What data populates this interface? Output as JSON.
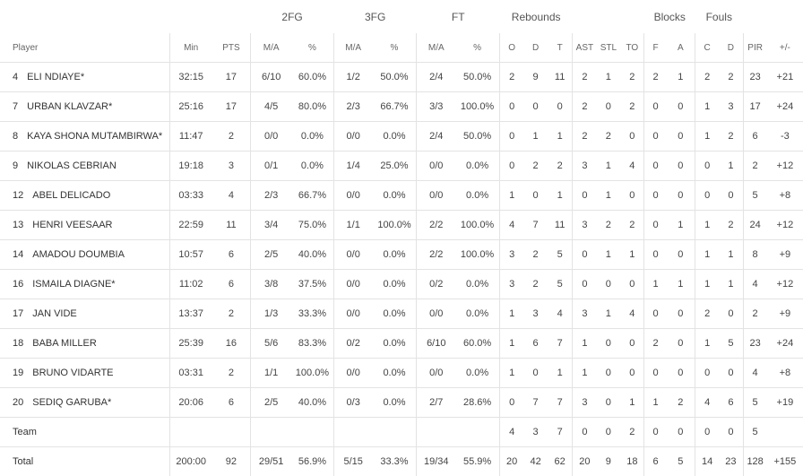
{
  "groups": {
    "fg2": "2FG",
    "fg3": "3FG",
    "ft": "FT",
    "rebounds": "Rebounds",
    "blocks": "Blocks",
    "fouls": "Fouls"
  },
  "headers": {
    "player": "Player",
    "min": "Min",
    "pts": "PTS",
    "fg2_ma": "M/A",
    "fg2_pct": "%",
    "fg3_ma": "M/A",
    "fg3_pct": "%",
    "ft_ma": "M/A",
    "ft_pct": "%",
    "reb_o": "O",
    "reb_d": "D",
    "reb_t": "T",
    "ast": "AST",
    "stl": "STL",
    "to": "TO",
    "blk_f": "F",
    "blk_a": "A",
    "foul_c": "C",
    "foul_d": "D",
    "pir": "PIR",
    "pm": "+/-"
  },
  "rows": [
    {
      "num": "4",
      "name": "ELI NDIAYE*",
      "min": "32:15",
      "pts": "17",
      "fg2_ma": "6/10",
      "fg2_pct": "60.0%",
      "fg3_ma": "1/2",
      "fg3_pct": "50.0%",
      "ft_ma": "2/4",
      "ft_pct": "50.0%",
      "reb_o": "2",
      "reb_d": "9",
      "reb_t": "11",
      "ast": "2",
      "stl": "1",
      "to": "2",
      "blk_f": "2",
      "blk_a": "1",
      "foul_c": "2",
      "foul_d": "2",
      "pir": "23",
      "pm": "+21"
    },
    {
      "num": "7",
      "name": "URBAN KLAVZAR*",
      "min": "25:16",
      "pts": "17",
      "fg2_ma": "4/5",
      "fg2_pct": "80.0%",
      "fg3_ma": "2/3",
      "fg3_pct": "66.7%",
      "ft_ma": "3/3",
      "ft_pct": "100.0%",
      "reb_o": "0",
      "reb_d": "0",
      "reb_t": "0",
      "ast": "2",
      "stl": "0",
      "to": "2",
      "blk_f": "0",
      "blk_a": "0",
      "foul_c": "1",
      "foul_d": "3",
      "pir": "17",
      "pm": "+24"
    },
    {
      "num": "8",
      "name": "KAYA SHONA MUTAMBIRWA*",
      "min": "11:47",
      "pts": "2",
      "fg2_ma": "0/0",
      "fg2_pct": "0.0%",
      "fg3_ma": "0/0",
      "fg3_pct": "0.0%",
      "ft_ma": "2/4",
      "ft_pct": "50.0%",
      "reb_o": "0",
      "reb_d": "1",
      "reb_t": "1",
      "ast": "2",
      "stl": "2",
      "to": "0",
      "blk_f": "0",
      "blk_a": "0",
      "foul_c": "1",
      "foul_d": "2",
      "pir": "6",
      "pm": "-3"
    },
    {
      "num": "9",
      "name": "NIKOLAS CEBRIAN",
      "min": "19:18",
      "pts": "3",
      "fg2_ma": "0/1",
      "fg2_pct": "0.0%",
      "fg3_ma": "1/4",
      "fg3_pct": "25.0%",
      "ft_ma": "0/0",
      "ft_pct": "0.0%",
      "reb_o": "0",
      "reb_d": "2",
      "reb_t": "2",
      "ast": "3",
      "stl": "1",
      "to": "4",
      "blk_f": "0",
      "blk_a": "0",
      "foul_c": "0",
      "foul_d": "1",
      "pir": "2",
      "pm": "+12"
    },
    {
      "num": "12",
      "name": "ABEL DELICADO",
      "min": "03:33",
      "pts": "4",
      "fg2_ma": "2/3",
      "fg2_pct": "66.7%",
      "fg3_ma": "0/0",
      "fg3_pct": "0.0%",
      "ft_ma": "0/0",
      "ft_pct": "0.0%",
      "reb_o": "1",
      "reb_d": "0",
      "reb_t": "1",
      "ast": "0",
      "stl": "1",
      "to": "0",
      "blk_f": "0",
      "blk_a": "0",
      "foul_c": "0",
      "foul_d": "0",
      "pir": "5",
      "pm": "+8"
    },
    {
      "num": "13",
      "name": "HENRI VEESAAR",
      "min": "22:59",
      "pts": "11",
      "fg2_ma": "3/4",
      "fg2_pct": "75.0%",
      "fg3_ma": "1/1",
      "fg3_pct": "100.0%",
      "ft_ma": "2/2",
      "ft_pct": "100.0%",
      "reb_o": "4",
      "reb_d": "7",
      "reb_t": "11",
      "ast": "3",
      "stl": "2",
      "to": "2",
      "blk_f": "0",
      "blk_a": "1",
      "foul_c": "1",
      "foul_d": "2",
      "pir": "24",
      "pm": "+12"
    },
    {
      "num": "14",
      "name": "AMADOU DOUMBIA",
      "min": "10:57",
      "pts": "6",
      "fg2_ma": "2/5",
      "fg2_pct": "40.0%",
      "fg3_ma": "0/0",
      "fg3_pct": "0.0%",
      "ft_ma": "2/2",
      "ft_pct": "100.0%",
      "reb_o": "3",
      "reb_d": "2",
      "reb_t": "5",
      "ast": "0",
      "stl": "1",
      "to": "1",
      "blk_f": "0",
      "blk_a": "0",
      "foul_c": "1",
      "foul_d": "1",
      "pir": "8",
      "pm": "+9"
    },
    {
      "num": "16",
      "name": "ISMAILA DIAGNE*",
      "min": "11:02",
      "pts": "6",
      "fg2_ma": "3/8",
      "fg2_pct": "37.5%",
      "fg3_ma": "0/0",
      "fg3_pct": "0.0%",
      "ft_ma": "0/2",
      "ft_pct": "0.0%",
      "reb_o": "3",
      "reb_d": "2",
      "reb_t": "5",
      "ast": "0",
      "stl": "0",
      "to": "0",
      "blk_f": "1",
      "blk_a": "1",
      "foul_c": "1",
      "foul_d": "1",
      "pir": "4",
      "pm": "+12"
    },
    {
      "num": "17",
      "name": "JAN VIDE",
      "min": "13:37",
      "pts": "2",
      "fg2_ma": "1/3",
      "fg2_pct": "33.3%",
      "fg3_ma": "0/0",
      "fg3_pct": "0.0%",
      "ft_ma": "0/0",
      "ft_pct": "0.0%",
      "reb_o": "1",
      "reb_d": "3",
      "reb_t": "4",
      "ast": "3",
      "stl": "1",
      "to": "4",
      "blk_f": "0",
      "blk_a": "0",
      "foul_c": "2",
      "foul_d": "0",
      "pir": "2",
      "pm": "+9"
    },
    {
      "num": "18",
      "name": "BABA MILLER",
      "min": "25:39",
      "pts": "16",
      "fg2_ma": "5/6",
      "fg2_pct": "83.3%",
      "fg3_ma": "0/2",
      "fg3_pct": "0.0%",
      "ft_ma": "6/10",
      "ft_pct": "60.0%",
      "reb_o": "1",
      "reb_d": "6",
      "reb_t": "7",
      "ast": "1",
      "stl": "0",
      "to": "0",
      "blk_f": "2",
      "blk_a": "0",
      "foul_c": "1",
      "foul_d": "5",
      "pir": "23",
      "pm": "+24"
    },
    {
      "num": "19",
      "name": "BRUNO VIDARTE",
      "min": "03:31",
      "pts": "2",
      "fg2_ma": "1/1",
      "fg2_pct": "100.0%",
      "fg3_ma": "0/0",
      "fg3_pct": "0.0%",
      "ft_ma": "0/0",
      "ft_pct": "0.0%",
      "reb_o": "1",
      "reb_d": "0",
      "reb_t": "1",
      "ast": "1",
      "stl": "0",
      "to": "0",
      "blk_f": "0",
      "blk_a": "0",
      "foul_c": "0",
      "foul_d": "0",
      "pir": "4",
      "pm": "+8"
    },
    {
      "num": "20",
      "name": "SEDIQ GARUBA*",
      "min": "20:06",
      "pts": "6",
      "fg2_ma": "2/5",
      "fg2_pct": "40.0%",
      "fg3_ma": "0/3",
      "fg3_pct": "0.0%",
      "ft_ma": "2/7",
      "ft_pct": "28.6%",
      "reb_o": "0",
      "reb_d": "7",
      "reb_t": "7",
      "ast": "3",
      "stl": "0",
      "to": "1",
      "blk_f": "1",
      "blk_a": "2",
      "foul_c": "4",
      "foul_d": "6",
      "pir": "5",
      "pm": "+19"
    },
    {
      "num": "",
      "name": "Team",
      "min": "",
      "pts": "",
      "fg2_ma": "",
      "fg2_pct": "",
      "fg3_ma": "",
      "fg3_pct": "",
      "ft_ma": "",
      "ft_pct": "",
      "reb_o": "4",
      "reb_d": "3",
      "reb_t": "7",
      "ast": "0",
      "stl": "0",
      "to": "2",
      "blk_f": "0",
      "blk_a": "0",
      "foul_c": "0",
      "foul_d": "0",
      "pir": "5",
      "pm": ""
    },
    {
      "num": "",
      "name": "Total",
      "min": "200:00",
      "pts": "92",
      "fg2_ma": "29/51",
      "fg2_pct": "56.9%",
      "fg3_ma": "5/15",
      "fg3_pct": "33.3%",
      "ft_ma": "19/34",
      "ft_pct": "55.9%",
      "reb_o": "20",
      "reb_d": "42",
      "reb_t": "62",
      "ast": "20",
      "stl": "9",
      "to": "18",
      "blk_f": "6",
      "blk_a": "5",
      "foul_c": "14",
      "foul_d": "23",
      "pir": "128",
      "pm": "+155"
    }
  ]
}
